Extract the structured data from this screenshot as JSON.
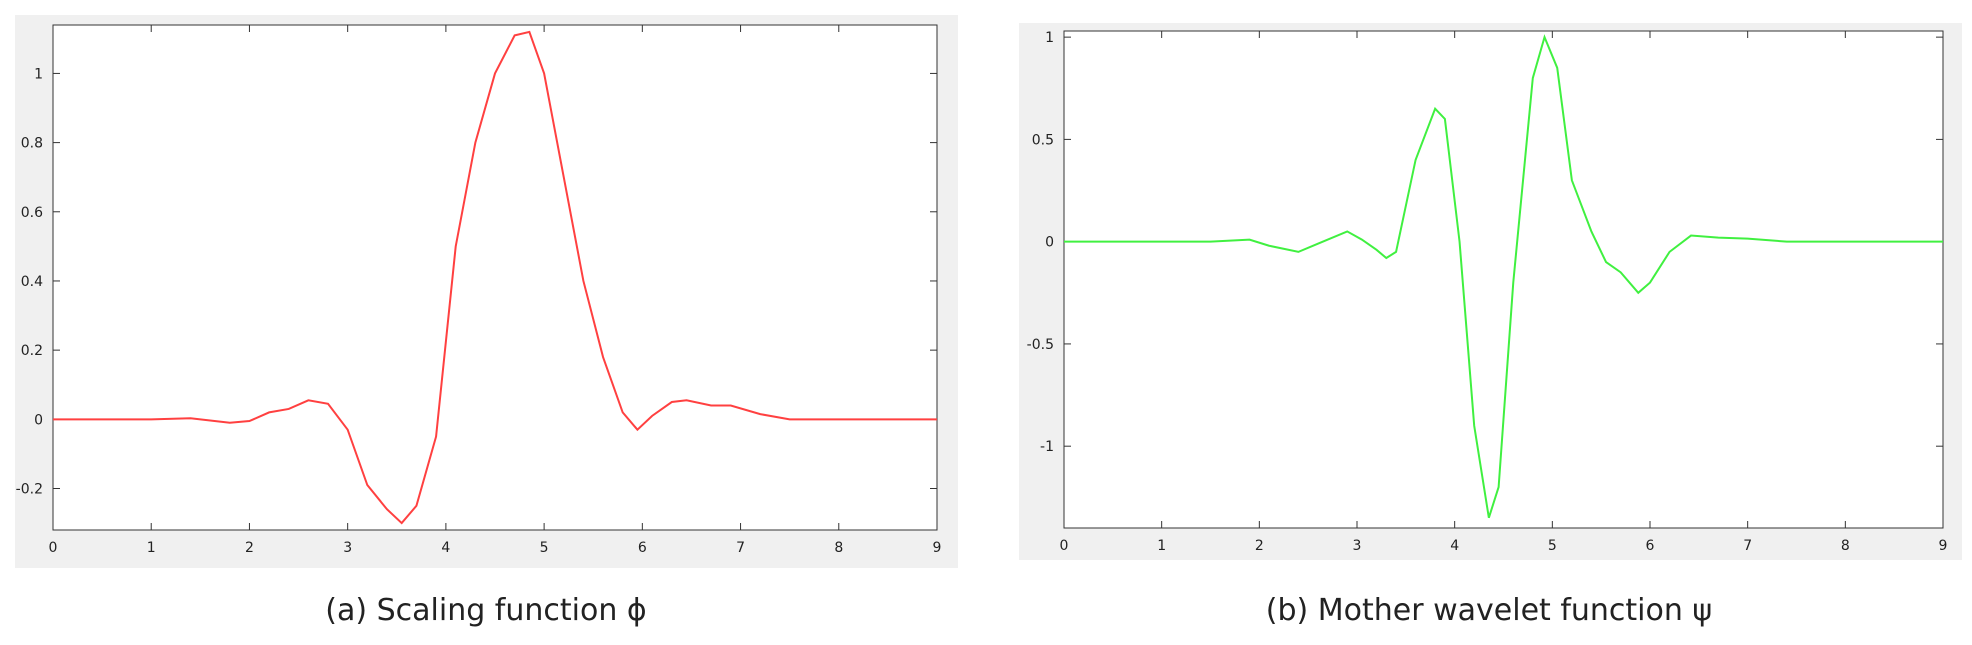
{
  "chart_data": [
    {
      "type": "line",
      "title": "(a) Scaling function ϕ",
      "x": [
        0,
        0.5,
        1,
        1.4,
        1.8,
        2,
        2.2,
        2.4,
        2.6,
        2.8,
        3,
        3.2,
        3.4,
        3.55,
        3.7,
        3.9,
        4.1,
        4.3,
        4.5,
        4.7,
        4.85,
        5,
        5.2,
        5.4,
        5.6,
        5.8,
        5.95,
        6.1,
        6.3,
        6.45,
        6.7,
        6.9,
        7.2,
        7.5,
        8,
        8.5,
        9
      ],
      "series": [
        {
          "name": "phi",
          "color": "#ff4040",
          "values": [
            0,
            0,
            0,
            0.003,
            -0.01,
            -0.005,
            0.02,
            0.03,
            0.055,
            0.045,
            -0.03,
            -0.19,
            -0.26,
            -0.3,
            -0.25,
            -0.05,
            0.5,
            0.8,
            1.0,
            1.11,
            1.12,
            1.0,
            0.7,
            0.4,
            0.18,
            0.02,
            -0.03,
            0.01,
            0.05,
            0.055,
            0.04,
            0.04,
            0.015,
            0,
            0,
            0,
            0
          ]
        }
      ],
      "xlim": [
        0,
        9
      ],
      "xticks": [
        0,
        1,
        2,
        3,
        4,
        5,
        6,
        7,
        8,
        9
      ],
      "ylim": [
        -0.32,
        1.14
      ],
      "yticks": [
        -0.2,
        0,
        0.2,
        0.4,
        0.6,
        0.8,
        1
      ]
    },
    {
      "type": "line",
      "title": "(b) Mother wavelet function ψ",
      "x": [
        0,
        0.5,
        1,
        1.5,
        1.9,
        2.1,
        2.4,
        2.6,
        2.9,
        3.05,
        3.2,
        3.3,
        3.4,
        3.6,
        3.8,
        3.9,
        4.05,
        4.2,
        4.35,
        4.45,
        4.6,
        4.8,
        4.92,
        5.05,
        5.2,
        5.4,
        5.55,
        5.7,
        5.88,
        6.0,
        6.2,
        6.42,
        6.7,
        7,
        7.4,
        8,
        9
      ],
      "series": [
        {
          "name": "psi",
          "color": "#40f040",
          "values": [
            0,
            0,
            0,
            0,
            0.01,
            -0.02,
            -0.05,
            -0.01,
            0.05,
            0.01,
            -0.04,
            -0.08,
            -0.05,
            0.4,
            0.65,
            0.6,
            0.0,
            -0.9,
            -1.35,
            -1.2,
            -0.2,
            0.8,
            1.0,
            0.85,
            0.3,
            0.05,
            -0.1,
            -0.15,
            -0.25,
            -0.2,
            -0.05,
            0.03,
            0.02,
            0.015,
            0,
            0,
            0
          ]
        }
      ],
      "xlim": [
        0,
        9
      ],
      "xticks": [
        0,
        1,
        2,
        3,
        4,
        5,
        6,
        7,
        8,
        9
      ],
      "ylim": [
        -1.4,
        1.03
      ],
      "yticks": [
        -1,
        -0.5,
        0,
        0.5,
        1
      ]
    }
  ]
}
